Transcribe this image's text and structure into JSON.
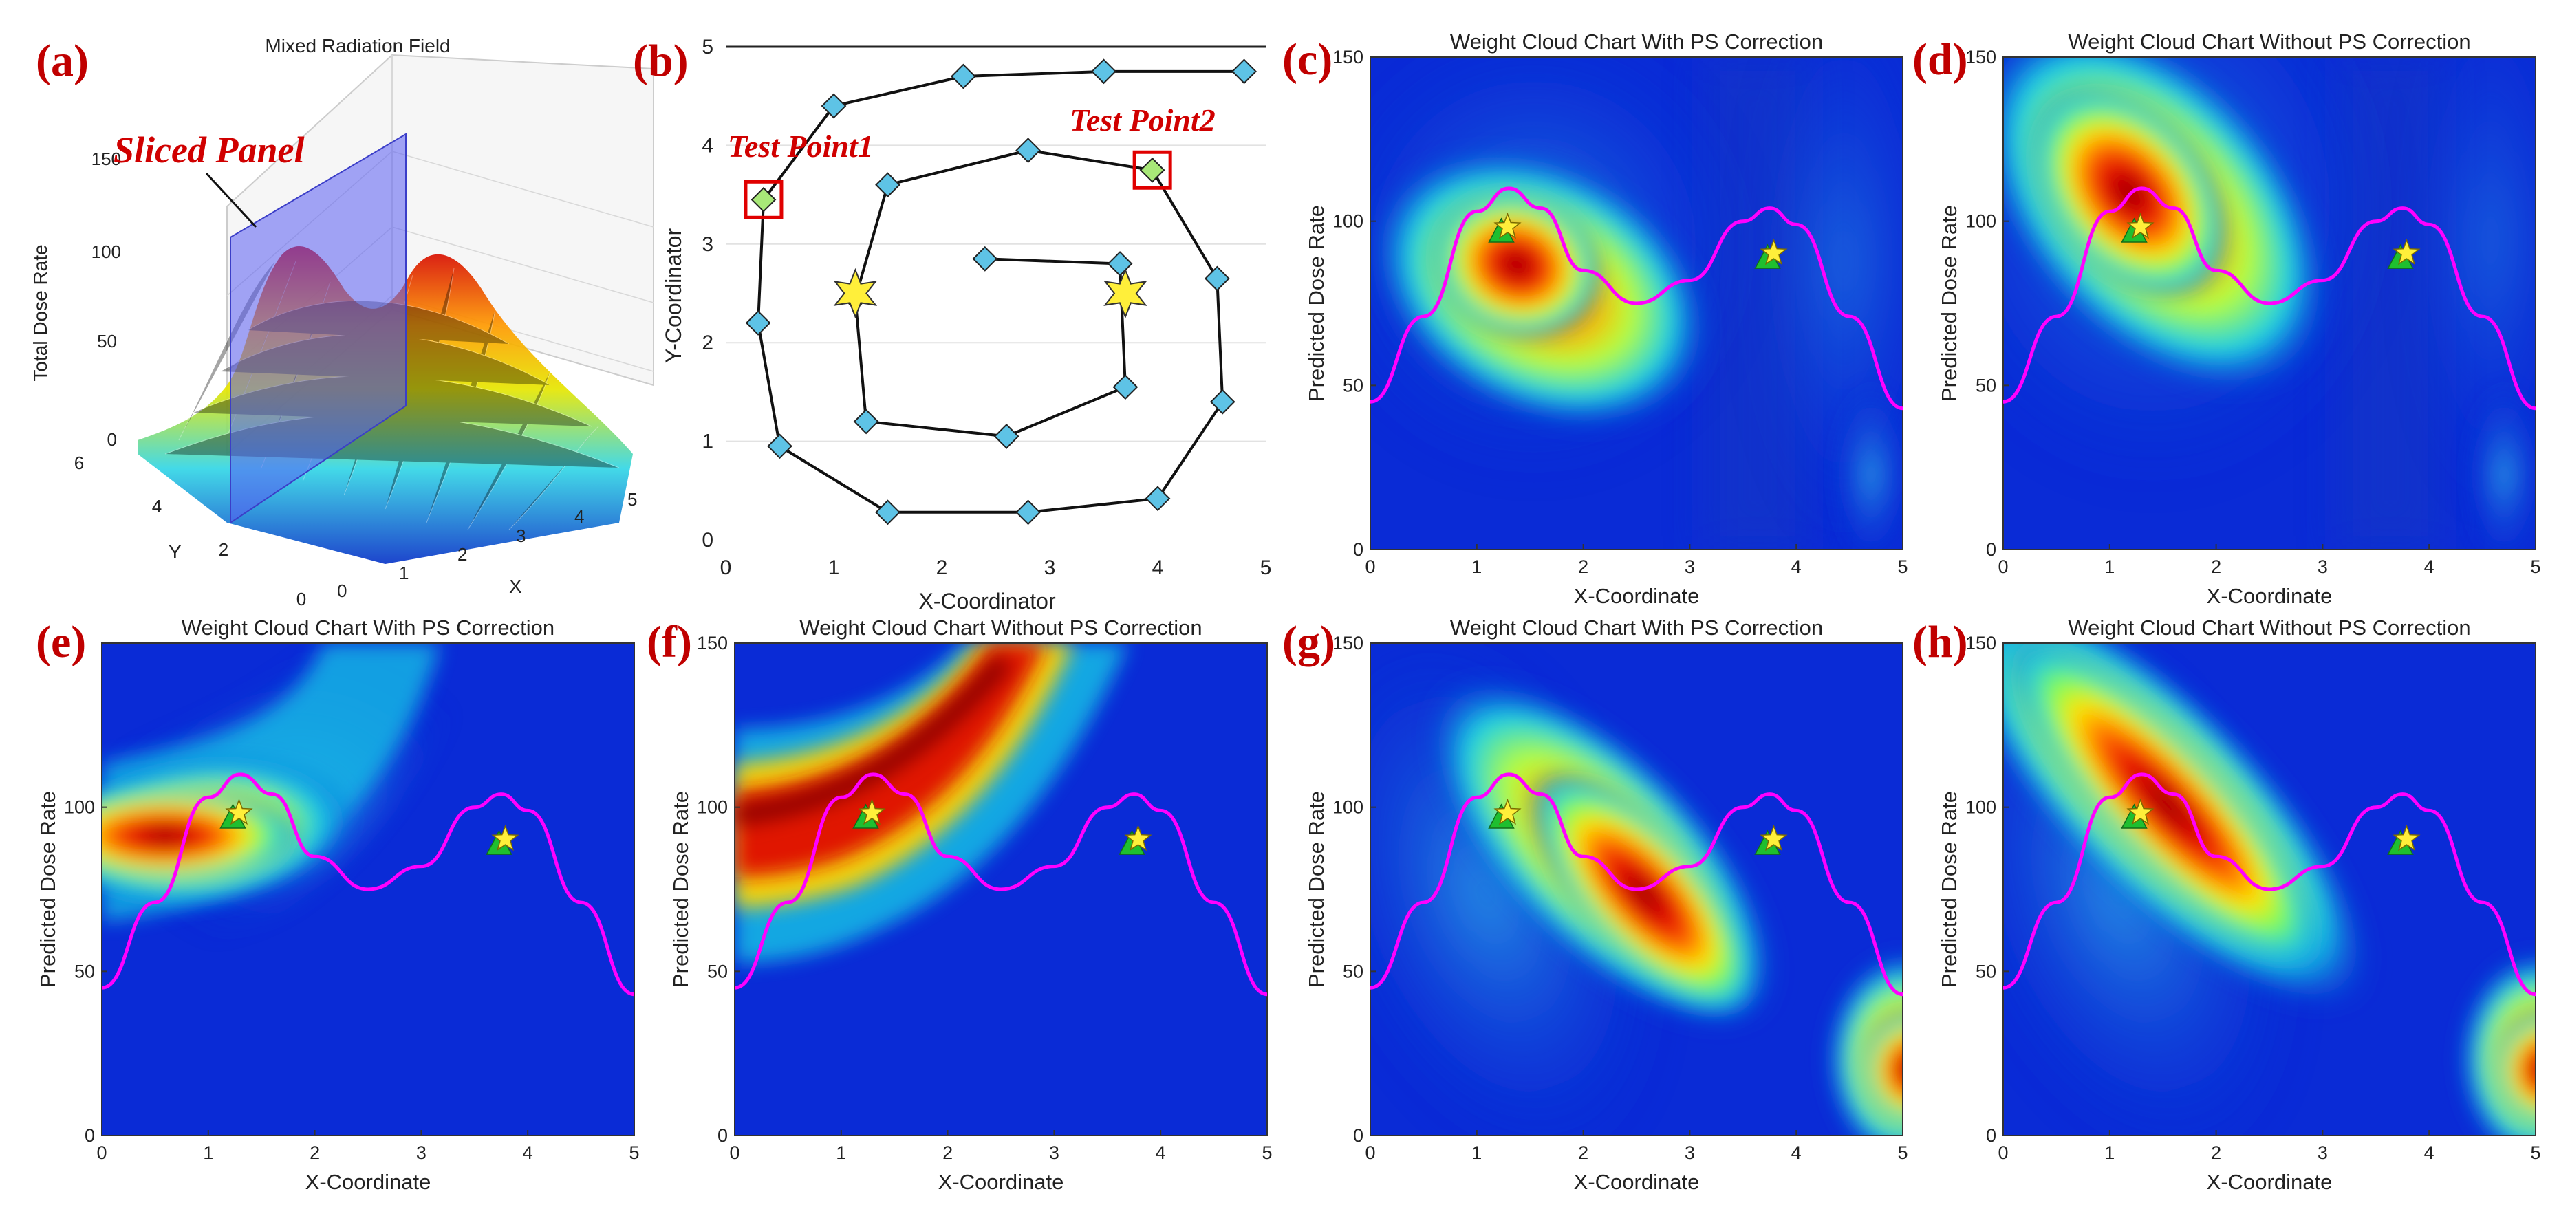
{
  "figure": {
    "colors": {
      "curve": "#ff00ff",
      "marker_diamond": "#5ec3e6",
      "test_point": "#a8e878",
      "test_box": "#e00000",
      "star": "#ffef3a",
      "triangle": "#1fbf2f",
      "panel_letter": "#c00000",
      "slice_plane": "#5a5cf2"
    }
  },
  "chart_data": [
    {
      "panel": "(a)",
      "type": "surface3d",
      "title": "Mixed Radiation Field",
      "zlabel": "Total Dose Rate",
      "xlabel": "X",
      "ylabel": "Y",
      "x_ticks": [
        "0",
        "1",
        "2",
        "3",
        "4",
        "5"
      ],
      "y_ticks": [
        "0",
        "2",
        "4",
        "6"
      ],
      "z_ticks": [
        "0",
        "50",
        "100",
        "150"
      ],
      "annotation": "Sliced Panel"
    },
    {
      "panel": "(b)",
      "type": "scatter",
      "xlabel": "X-Coordinator",
      "ylabel": "Y-Coordinator",
      "xlim": [
        0,
        5
      ],
      "ylim": [
        0,
        5
      ],
      "x_ticks": [
        "0",
        "1",
        "2",
        "3",
        "4",
        "5"
      ],
      "y_ticks": [
        "0",
        "1",
        "2",
        "3",
        "4",
        "5"
      ],
      "path": [
        [
          4.8,
          4.75
        ],
        [
          3.5,
          4.75
        ],
        [
          2.2,
          4.7
        ],
        [
          1.0,
          4.4
        ],
        [
          0.35,
          3.45
        ],
        [
          0.3,
          2.2
        ],
        [
          0.5,
          0.95
        ],
        [
          1.5,
          0.28
        ],
        [
          2.8,
          0.28
        ],
        [
          4.0,
          0.42
        ],
        [
          4.6,
          1.4
        ],
        [
          4.55,
          2.65
        ],
        [
          3.95,
          3.75
        ],
        [
          2.8,
          3.95
        ],
        [
          1.5,
          3.6
        ],
        [
          1.2,
          2.45
        ],
        [
          1.3,
          1.2
        ],
        [
          2.6,
          1.05
        ],
        [
          3.7,
          1.55
        ],
        [
          3.65,
          2.8
        ],
        [
          2.4,
          2.85
        ]
      ],
      "test_points": [
        {
          "label": "Test Point1",
          "x": 0.35,
          "y": 3.45
        },
        {
          "label": "Test Point2",
          "x": 3.95,
          "y": 3.75
        }
      ],
      "sources": [
        {
          "x": 1.2,
          "y": 2.5
        },
        {
          "x": 3.7,
          "y": 2.5
        }
      ]
    },
    {
      "panel": "(c)",
      "type": "heatmap",
      "title": "Weight Cloud Chart With PS Correction",
      "xlabel": "X-Coordinate",
      "ylabel": "Predicted Dose Rate",
      "xlim": [
        0,
        5
      ],
      "ylim": [
        0,
        150
      ],
      "x_ticks": [
        "0",
        "1",
        "2",
        "3",
        "4",
        "5"
      ],
      "y_ticks": [
        "0",
        "50",
        "100",
        "150"
      ],
      "y_tick_values": [
        0,
        50,
        100,
        150
      ],
      "curve": [
        [
          0,
          45
        ],
        [
          0.5,
          71
        ],
        [
          1,
          103
        ],
        [
          1.3,
          110
        ],
        [
          1.6,
          104
        ],
        [
          2,
          85
        ],
        [
          2.5,
          75
        ],
        [
          3,
          82
        ],
        [
          3.5,
          100
        ],
        [
          3.75,
          104
        ],
        [
          4,
          99
        ],
        [
          4.5,
          71
        ],
        [
          5,
          43
        ]
      ],
      "markers": [
        {
          "x": 1.25,
          "y": 97
        },
        {
          "x": 3.75,
          "y": 89
        }
      ]
    },
    {
      "panel": "(d)",
      "type": "heatmap",
      "title": "Weight Cloud Chart Without PS Correction",
      "xlabel": "X-Coordinate",
      "ylabel": "Predicted Dose Rate",
      "xlim": [
        0,
        5
      ],
      "ylim": [
        0,
        150
      ],
      "x_ticks": [
        "0",
        "1",
        "2",
        "3",
        "4",
        "5"
      ],
      "y_ticks": [
        "0",
        "50",
        "100",
        "150"
      ],
      "y_tick_values": [
        0,
        50,
        100,
        150
      ],
      "curve": [
        [
          0,
          45
        ],
        [
          0.5,
          71
        ],
        [
          1,
          103
        ],
        [
          1.3,
          110
        ],
        [
          1.6,
          104
        ],
        [
          2,
          85
        ],
        [
          2.5,
          75
        ],
        [
          3,
          82
        ],
        [
          3.5,
          100
        ],
        [
          3.75,
          104
        ],
        [
          4,
          99
        ],
        [
          4.5,
          71
        ],
        [
          5,
          43
        ]
      ],
      "markers": [
        {
          "x": 1.25,
          "y": 97
        },
        {
          "x": 3.75,
          "y": 89
        }
      ]
    },
    {
      "panel": "(e)",
      "type": "heatmap",
      "title": "Weight Cloud Chart With PS Correction",
      "xlabel": "X-Coordinate",
      "ylabel": "Predicted Dose Rate",
      "xlim": [
        0,
        5
      ],
      "ylim": [
        0,
        150
      ],
      "x_ticks": [
        "0",
        "1",
        "2",
        "3",
        "4",
        "5"
      ],
      "y_ticks": [
        "0",
        "50",
        "100"
      ],
      "y_tick_values": [
        0,
        50,
        100
      ],
      "curve": [
        [
          0,
          45
        ],
        [
          0.5,
          71
        ],
        [
          1,
          103
        ],
        [
          1.3,
          110
        ],
        [
          1.6,
          104
        ],
        [
          2,
          85
        ],
        [
          2.5,
          75
        ],
        [
          3,
          82
        ],
        [
          3.5,
          100
        ],
        [
          3.75,
          104
        ],
        [
          4,
          99
        ],
        [
          4.5,
          71
        ],
        [
          5,
          43
        ]
      ],
      "markers": [
        {
          "x": 1.25,
          "y": 97
        },
        {
          "x": 3.75,
          "y": 89
        }
      ]
    },
    {
      "panel": "(f)",
      "type": "heatmap",
      "title": "Weight Cloud Chart Without PS Correction",
      "xlabel": "X-Coordinate",
      "ylabel": "Predicted Dose Rate",
      "xlim": [
        0,
        5
      ],
      "ylim": [
        0,
        150
      ],
      "x_ticks": [
        "0",
        "1",
        "2",
        "3",
        "4",
        "5"
      ],
      "y_ticks": [
        "0",
        "50",
        "100",
        "150"
      ],
      "y_tick_values": [
        0,
        50,
        100,
        150
      ],
      "curve": [
        [
          0,
          45
        ],
        [
          0.5,
          71
        ],
        [
          1,
          103
        ],
        [
          1.3,
          110
        ],
        [
          1.6,
          104
        ],
        [
          2,
          85
        ],
        [
          2.5,
          75
        ],
        [
          3,
          82
        ],
        [
          3.5,
          100
        ],
        [
          3.75,
          104
        ],
        [
          4,
          99
        ],
        [
          4.5,
          71
        ],
        [
          5,
          43
        ]
      ],
      "markers": [
        {
          "x": 1.25,
          "y": 97
        },
        {
          "x": 3.75,
          "y": 89
        }
      ]
    },
    {
      "panel": "(g)",
      "type": "heatmap",
      "title": "Weight Cloud Chart With PS Correction",
      "xlabel": "X-Coordinate",
      "ylabel": "Predicted Dose Rate",
      "xlim": [
        0,
        5
      ],
      "ylim": [
        0,
        150
      ],
      "x_ticks": [
        "0",
        "1",
        "2",
        "3",
        "4",
        "5"
      ],
      "y_ticks": [
        "0",
        "50",
        "100",
        "150"
      ],
      "y_tick_values": [
        0,
        50,
        100,
        150
      ],
      "curve": [
        [
          0,
          45
        ],
        [
          0.5,
          71
        ],
        [
          1,
          103
        ],
        [
          1.3,
          110
        ],
        [
          1.6,
          104
        ],
        [
          2,
          85
        ],
        [
          2.5,
          75
        ],
        [
          3,
          82
        ],
        [
          3.5,
          100
        ],
        [
          3.75,
          104
        ],
        [
          4,
          99
        ],
        [
          4.5,
          71
        ],
        [
          5,
          43
        ]
      ],
      "markers": [
        {
          "x": 1.25,
          "y": 97
        },
        {
          "x": 3.75,
          "y": 89
        }
      ]
    },
    {
      "panel": "(h)",
      "type": "heatmap",
      "title": "Weight Cloud Chart Without PS Correction",
      "xlabel": "X-Coordinate",
      "ylabel": "Predicted Dose Rate",
      "xlim": [
        0,
        5
      ],
      "ylim": [
        0,
        150
      ],
      "x_ticks": [
        "0",
        "1",
        "2",
        "3",
        "4",
        "5"
      ],
      "y_ticks": [
        "0",
        "50",
        "100",
        "150"
      ],
      "y_tick_values": [
        0,
        50,
        100,
        150
      ],
      "curve": [
        [
          0,
          45
        ],
        [
          0.5,
          71
        ],
        [
          1,
          103
        ],
        [
          1.3,
          110
        ],
        [
          1.6,
          104
        ],
        [
          2,
          85
        ],
        [
          2.5,
          75
        ],
        [
          3,
          82
        ],
        [
          3.5,
          100
        ],
        [
          3.75,
          104
        ],
        [
          4,
          99
        ],
        [
          4.5,
          71
        ],
        [
          5,
          43
        ]
      ],
      "markers": [
        {
          "x": 1.25,
          "y": 97
        },
        {
          "x": 3.75,
          "y": 89
        }
      ]
    }
  ]
}
